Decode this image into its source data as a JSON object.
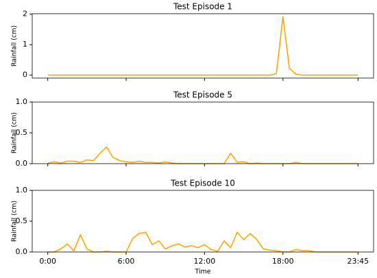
{
  "chart_data": [
    {
      "type": "line",
      "title": "Test Episode 1",
      "ylabel": "Rainfall (cm)",
      "color": "#ffa500",
      "x": [
        0,
        0.5,
        1,
        1.5,
        2,
        2.5,
        3,
        3.5,
        4,
        4.5,
        5,
        5.5,
        6,
        6.5,
        7,
        7.5,
        8,
        8.5,
        9,
        9.5,
        10,
        10.5,
        11,
        11.5,
        12,
        12.5,
        13,
        13.5,
        14,
        14.5,
        15,
        15.5,
        16,
        16.5,
        17,
        17.5,
        18,
        18.5,
        19,
        19.5,
        20,
        20.5,
        21,
        21.5,
        22,
        22.5,
        23,
        23.5,
        23.75
      ],
      "values": [
        0,
        0,
        0,
        0,
        0,
        0,
        0,
        0,
        0,
        0,
        0,
        0,
        0,
        0,
        0,
        0,
        0,
        0,
        0,
        0,
        0,
        0,
        0,
        0,
        0,
        0,
        0,
        0,
        0,
        0,
        0,
        0,
        0,
        0,
        0,
        0.05,
        1.92,
        0.22,
        0.03,
        0,
        0,
        0,
        0,
        0,
        0,
        0,
        0,
        0,
        0
      ],
      "xlim": [
        -1.19,
        24.94
      ],
      "xticks": [
        0,
        6,
        12,
        18,
        23.75
      ],
      "ylim": [
        -0.096,
        2.016
      ],
      "yticks": [
        0,
        1,
        2
      ]
    },
    {
      "type": "line",
      "title": "Test Episode 5",
      "ylabel": "Rainfall (cm)",
      "color": "#ffa500",
      "x": [
        0,
        0.5,
        1,
        1.5,
        2,
        2.5,
        3,
        3.5,
        4,
        4.5,
        5,
        5.5,
        6,
        6.5,
        7,
        7.5,
        8,
        8.5,
        9,
        9.5,
        10,
        10.5,
        11,
        11.5,
        12,
        12.5,
        13,
        13.5,
        14,
        14.5,
        15,
        15.5,
        16,
        16.5,
        17,
        17.5,
        18,
        18.5,
        19,
        19.5,
        20,
        20.5,
        21,
        21.5,
        22,
        22.5,
        23,
        23.5,
        23.75
      ],
      "values": [
        0.01,
        0.03,
        0.01,
        0.04,
        0.04,
        0.02,
        0.06,
        0.05,
        0.17,
        0.27,
        0.1,
        0.05,
        0.03,
        0.02,
        0.04,
        0.02,
        0.02,
        0.01,
        0.03,
        0.01,
        0,
        0,
        0,
        0,
        0,
        0,
        0,
        0,
        0.17,
        0.02,
        0.03,
        0,
        0.01,
        0,
        0,
        0,
        0,
        0,
        0.02,
        0,
        0,
        0,
        0,
        0,
        0,
        0,
        0,
        0,
        0
      ],
      "xlim": [
        -1.19,
        24.94
      ],
      "xticks": [
        0,
        6,
        12,
        18,
        23.75
      ],
      "ylim": [
        0,
        1
      ],
      "yticks": [
        {
          "value": 0,
          "label": "0.0"
        },
        {
          "value": 0.5,
          "label": "0.5"
        },
        {
          "value": 1,
          "label": "1.0"
        }
      ]
    },
    {
      "type": "line",
      "title": "Test Episode 10",
      "ylabel": "Rainfall (cm)",
      "xlabel": "Time",
      "color": "#ffa500",
      "x": [
        0,
        0.5,
        1,
        1.5,
        2,
        2.5,
        3,
        3.5,
        4,
        4.5,
        5,
        5.5,
        6,
        6.5,
        7,
        7.5,
        8,
        8.5,
        9,
        9.5,
        10,
        10.5,
        11,
        11.5,
        12,
        12.5,
        13,
        13.5,
        14,
        14.5,
        15,
        15.5,
        16,
        16.5,
        17,
        17.5,
        18,
        18.5,
        19,
        19.5,
        20,
        20.5,
        21,
        21.5,
        22,
        22.5,
        23,
        23.5,
        23.75
      ],
      "values": [
        0,
        0,
        0.05,
        0.13,
        0.02,
        0.28,
        0.05,
        0,
        0,
        0.01,
        0,
        0,
        0,
        0.22,
        0.3,
        0.32,
        0.12,
        0.18,
        0.05,
        0.1,
        0.13,
        0.08,
        0.1,
        0.07,
        0.12,
        0.04,
        0.01,
        0.18,
        0.07,
        0.32,
        0.2,
        0.3,
        0.2,
        0.05,
        0.03,
        0.02,
        0,
        0,
        0.04,
        0.02,
        0.02,
        0,
        0,
        0,
        0,
        0,
        0,
        0,
        0
      ],
      "xlim": [
        -1.19,
        24.94
      ],
      "xticks": [
        {
          "value": 0,
          "label": "0:00"
        },
        {
          "value": 6,
          "label": "6:00"
        },
        {
          "value": 12,
          "label": "12:00"
        },
        {
          "value": 18,
          "label": "18:00"
        },
        {
          "value": 23.75,
          "label": "23:45"
        }
      ],
      "ylim": [
        0,
        1
      ],
      "yticks": [
        {
          "value": 0,
          "label": "0.0"
        },
        {
          "value": 0.5,
          "label": "0.5"
        },
        {
          "value": 1,
          "label": "1.0"
        }
      ]
    }
  ]
}
